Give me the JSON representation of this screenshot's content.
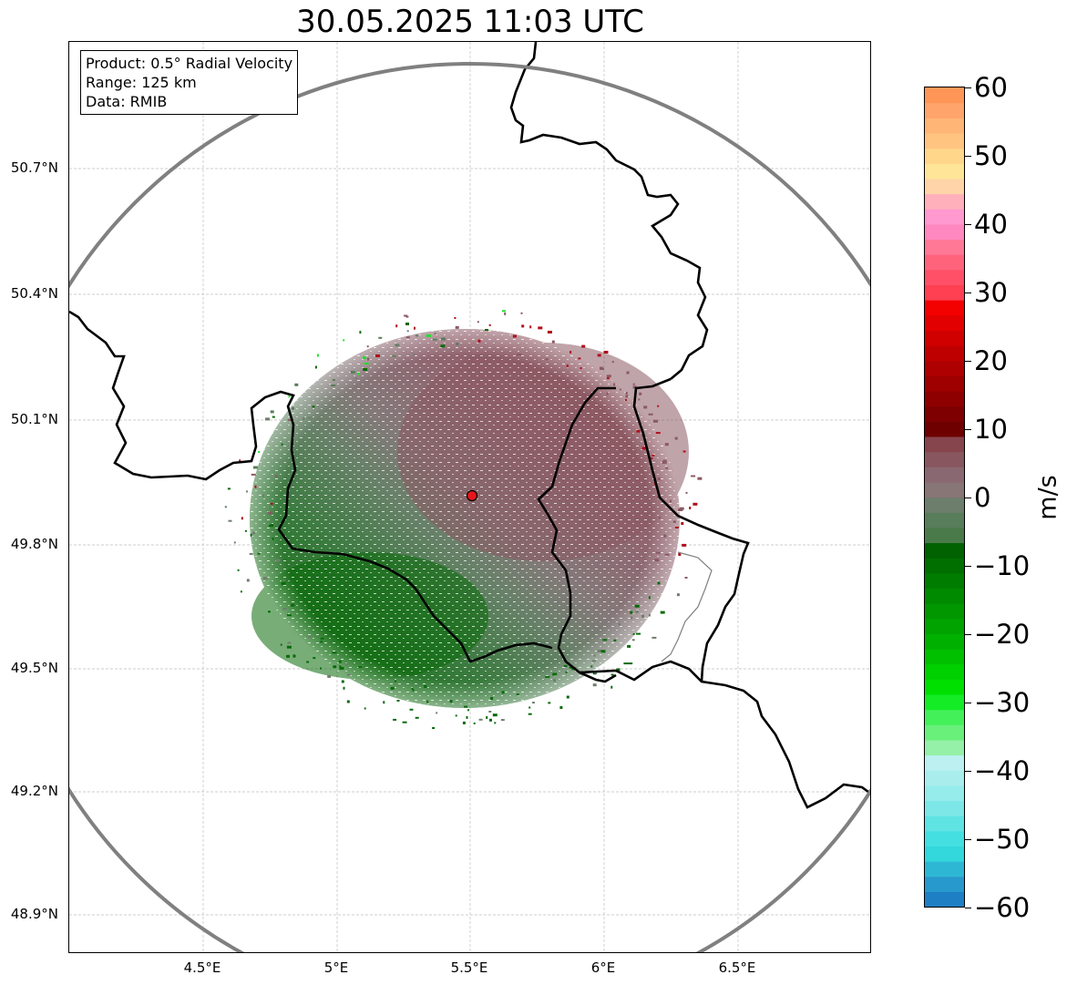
{
  "title": "30.05.2025 11:03 UTC",
  "info_box": {
    "lines": [
      "Product: 0.5° Radial Velocity",
      "Range: 125 km",
      "Data: RMIB"
    ]
  },
  "axes": {
    "lon_ticks": [
      "4.5°E",
      "5°E",
      "5.5°E",
      "6°E",
      "6.5°E"
    ],
    "lat_ticks": [
      "50.7°N",
      "50.4°N",
      "50.1°N",
      "49.8°N",
      "49.5°N",
      "49.2°N",
      "48.9°N"
    ],
    "lon_range": [
      4.0,
      7.0
    ],
    "lat_range": [
      48.8,
      51.0
    ],
    "grid": true
  },
  "radar": {
    "site": {
      "lon": 5.505,
      "lat": 49.914
    },
    "range_km": 125,
    "site_marker_color": "#e8161b",
    "range_ring_color": "#808080"
  },
  "colorbar": {
    "label": "m/s",
    "min": -60,
    "max": 60,
    "ticks": [
      "60",
      "50",
      "40",
      "30",
      "20",
      "10",
      "0",
      "−10",
      "−20",
      "−30",
      "−40",
      "−50",
      "−60"
    ],
    "colors_bottom_to_top": [
      "#1f7fc4",
      "#2899cc",
      "#2eb7d4",
      "#32d8dc",
      "#44dfe0",
      "#5fe3e3",
      "#7de7e7",
      "#96ebeb",
      "#aaeded",
      "#bdf0f0",
      "#95f0a8",
      "#69f07b",
      "#44f05a",
      "#14ec26",
      "#00e000",
      "#00d000",
      "#00c000",
      "#00b000",
      "#00a300",
      "#009700",
      "#008a00",
      "#007c00",
      "#006f00",
      "#006200",
      "#4a7a4a",
      "#587d5a",
      "#6e7e6c",
      "#887575",
      "#8a6872",
      "#88565e",
      "#86444c",
      "#6f0000",
      "#7f0000",
      "#8e0000",
      "#9e0000",
      "#ae0000",
      "#bf0000",
      "#d00000",
      "#e20000",
      "#f30000",
      "#ff3f52",
      "#ff5068",
      "#ff637c",
      "#ff7896",
      "#ff88c0",
      "#ff99d0",
      "#ffb0bb",
      "#ffd4a9",
      "#ffe598",
      "#ffd68a",
      "#ffc480",
      "#ffb575",
      "#ffa56c",
      "#ff9658"
    ]
  },
  "colors": {
    "border": "#000000",
    "grid": "#bdbdbd",
    "approaching": "#006400",
    "receding": "#8a5a66"
  }
}
